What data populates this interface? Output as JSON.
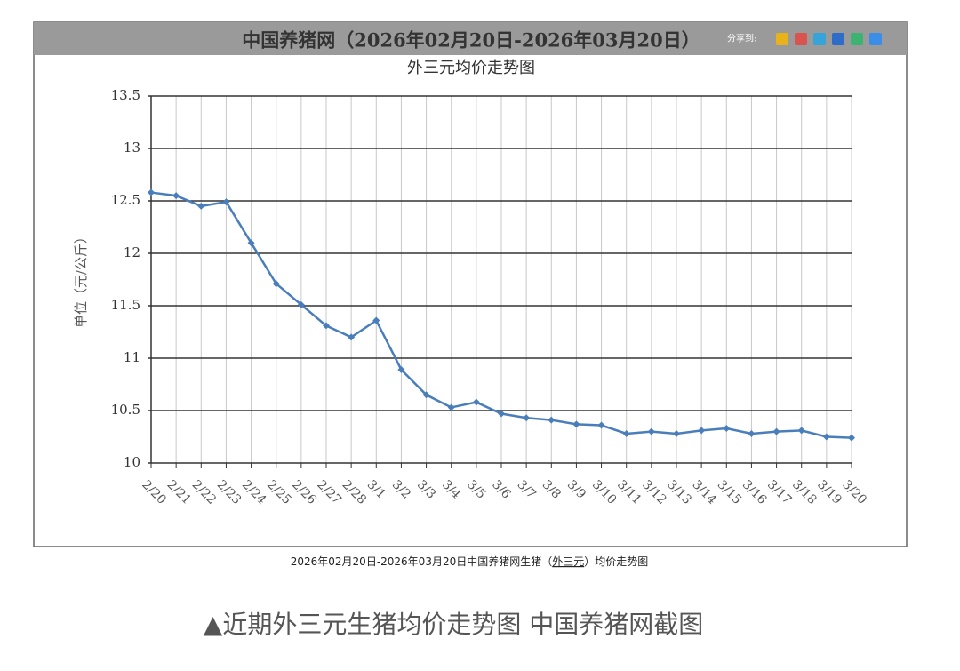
{
  "header": {
    "title": "中国养猪网（2026年02月20日-2026年03月20日）",
    "share": "分享到:"
  },
  "chart_data": {
    "type": "line",
    "title": "外三元均价走势图",
    "y_label": "单位（元/公斤）",
    "categories": [
      "2/20",
      "2/21",
      "2/22",
      "2/23",
      "2/24",
      "2/25",
      "2/26",
      "2/27",
      "2/28",
      "3/1",
      "3/2",
      "3/3",
      "3/4",
      "3/5",
      "3/6",
      "3/7",
      "3/8",
      "3/9",
      "3/10",
      "3/11",
      "3/12",
      "3/13",
      "3/14",
      "3/15",
      "3/16",
      "3/17",
      "3/18",
      "3/19",
      "3/20"
    ],
    "series": [
      {
        "name": "外三元",
        "color": "#4a7ebb",
        "values": [
          12.58,
          12.55,
          12.45,
          12.49,
          12.1,
          11.71,
          11.51,
          11.31,
          11.2,
          11.36,
          10.89,
          10.65,
          10.53,
          10.58,
          10.47,
          10.43,
          10.41,
          10.37,
          10.36,
          10.28,
          10.3,
          10.28,
          10.31,
          10.33,
          10.28,
          10.3,
          10.31,
          10.25,
          10.24
        ]
      }
    ],
    "ylim": [
      10,
      13.5
    ],
    "yticks": [
      10,
      10.5,
      11,
      11.5,
      12,
      12.5,
      13,
      13.5
    ],
    "grid": true
  },
  "caption": {
    "before": "2026年02月20日-2026年03月20日中国养猪网生猪（",
    "link": "外三元",
    "after": "）均价走势图"
  },
  "footer": "▲近期外三元生猪均价走势图 中国养猪网截图"
}
